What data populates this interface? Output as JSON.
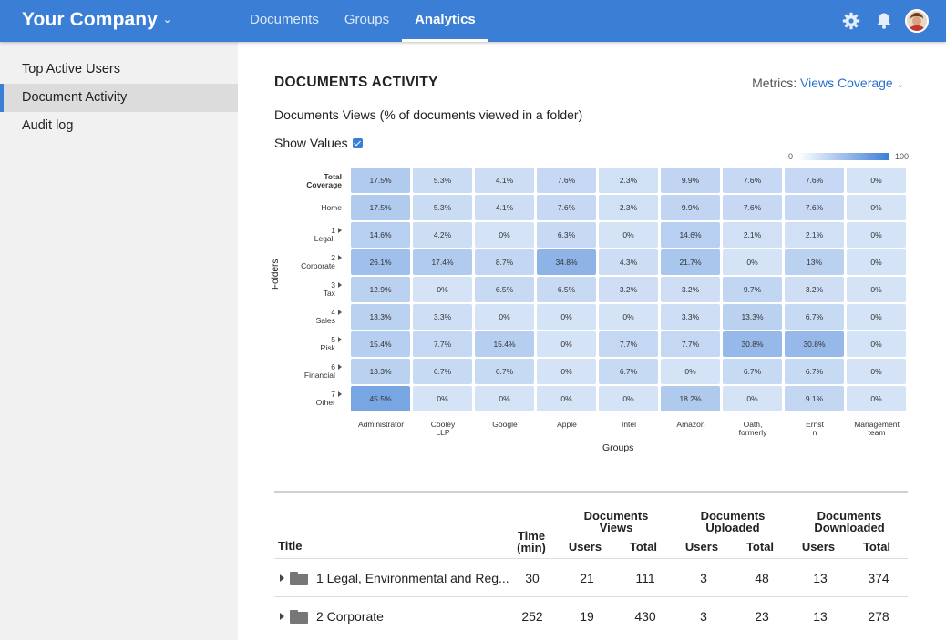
{
  "header": {
    "brand": "Your Company",
    "tabs": [
      {
        "label": "Documents",
        "active": false
      },
      {
        "label": "Groups",
        "active": false
      },
      {
        "label": "Analytics",
        "active": true
      }
    ],
    "icons": [
      "gear-icon",
      "bell-icon",
      "avatar"
    ],
    "color": "#3b7ed6"
  },
  "sidebar": {
    "items": [
      {
        "label": "Top Active Users",
        "active": false
      },
      {
        "label": "Document Activity",
        "active": true
      },
      {
        "label": "Audit log",
        "active": false
      }
    ]
  },
  "main": {
    "title": "DOCUMENTS ACTIVITY",
    "metrics_label": "Metrics:",
    "metrics_value": "Views Coverage",
    "subtitle": "Documents Views (% of documents viewed in a folder)",
    "show_values_label": "Show Values",
    "show_values_checked": true
  },
  "chart_data": {
    "type": "heatmap",
    "legend_min": "0",
    "legend_max": "100",
    "xlabel": "Groups",
    "ylabel": "Folders",
    "columns": [
      "Administrator",
      "Cooley LLP",
      "Google",
      "Apple",
      "Intel",
      "Amazon",
      "Oath, formerly",
      "Ernst n",
      "Management team"
    ],
    "rows": [
      {
        "label": "Total Coverage",
        "bold": true,
        "expandable": false,
        "values": [
          "17.5%",
          "5.3%",
          "4.1%",
          "7.6%",
          "2.3%",
          "9.9%",
          "7.6%",
          "7.6%",
          "0%"
        ]
      },
      {
        "label": "Home",
        "bold": false,
        "expandable": false,
        "values": [
          "17.5%",
          "5.3%",
          "4.1%",
          "7.6%",
          "2.3%",
          "9.9%",
          "7.6%",
          "7.6%",
          "0%"
        ]
      },
      {
        "label": "1 Legal,",
        "bold": false,
        "expandable": true,
        "values": [
          "14.6%",
          "4.2%",
          "0%",
          "6.3%",
          "0%",
          "14.6%",
          "2.1%",
          "2.1%",
          "0%"
        ]
      },
      {
        "label": "2 Corporate",
        "bold": false,
        "expandable": true,
        "values": [
          "26.1%",
          "17.4%",
          "8.7%",
          "34.8%",
          "4.3%",
          "21.7%",
          "0%",
          "13%",
          "0%"
        ]
      },
      {
        "label": "3 Tax",
        "bold": false,
        "expandable": true,
        "values": [
          "12.9%",
          "0%",
          "6.5%",
          "6.5%",
          "3.2%",
          "3.2%",
          "9.7%",
          "3.2%",
          "0%"
        ]
      },
      {
        "label": "4 Sales",
        "bold": false,
        "expandable": true,
        "values": [
          "13.3%",
          "3.3%",
          "0%",
          "0%",
          "0%",
          "3.3%",
          "13.3%",
          "6.7%",
          "0%"
        ]
      },
      {
        "label": "5 Risk",
        "bold": false,
        "expandable": true,
        "values": [
          "15.4%",
          "7.7%",
          "15.4%",
          "0%",
          "7.7%",
          "7.7%",
          "30.8%",
          "30.8%",
          "0%"
        ]
      },
      {
        "label": "6 Financial",
        "bold": false,
        "expandable": true,
        "values": [
          "13.3%",
          "6.7%",
          "6.7%",
          "0%",
          "6.7%",
          "0%",
          "6.7%",
          "6.7%",
          "0%"
        ]
      },
      {
        "label": "7 Other",
        "bold": false,
        "expandable": true,
        "values": [
          "45.5%",
          "0%",
          "0%",
          "0%",
          "0%",
          "18.2%",
          "0%",
          "9.1%",
          "0%"
        ]
      }
    ]
  },
  "table": {
    "headers": {
      "title": "Title",
      "time": "Time (min)",
      "views": "Documents Views",
      "uploaded": "Documents Uploaded",
      "downloaded": "Documents Downloaded",
      "users": "Users",
      "total": "Total"
    },
    "rows": [
      {
        "title": "1 Legal, Environmental and Reg...",
        "time": "30",
        "views_users": "21",
        "views_total": "111",
        "up_users": "3",
        "up_total": "48",
        "down_users": "13",
        "down_total": "374"
      },
      {
        "title": "2 Corporate",
        "time": "252",
        "views_users": "19",
        "views_total": "430",
        "up_users": "3",
        "up_total": "23",
        "down_users": "13",
        "down_total": "278"
      }
    ]
  }
}
